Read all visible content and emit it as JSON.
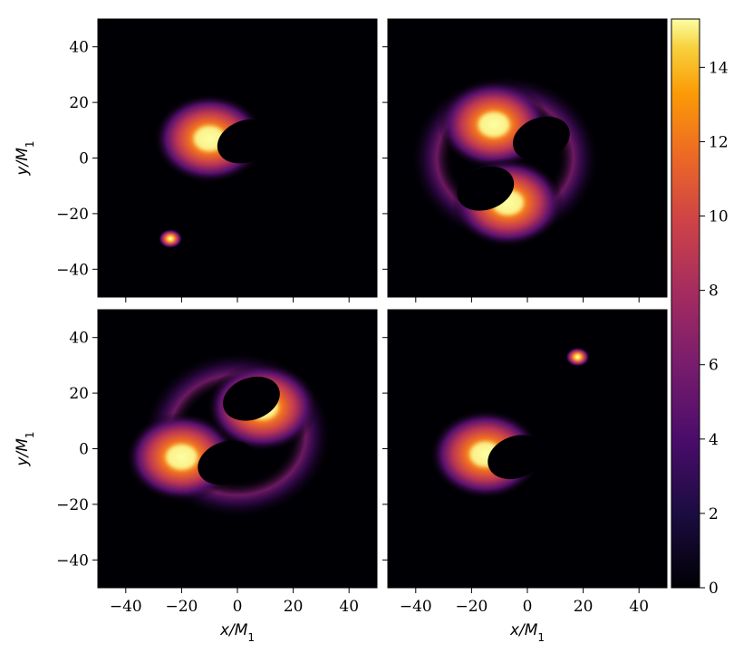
{
  "chart_data": [
    {
      "type": "heatmap",
      "panel": "top-left",
      "xlabel": "",
      "ylabel": "y/M1",
      "xlim": [
        -50,
        50
      ],
      "ylim": [
        -50,
        50
      ],
      "xticks": [
        "−40",
        "−20",
        "0",
        "20",
        "40"
      ],
      "yticks": [
        "40",
        "20",
        "0",
        "−20",
        "−40"
      ],
      "show_xtick_labels": false,
      "show_ytick_labels": true,
      "features": [
        {
          "kind": "blob",
          "x": -10,
          "y": 7,
          "intensity": 13.5
        },
        {
          "kind": "shadow",
          "x": 3,
          "y": 6
        },
        {
          "kind": "blob",
          "x": -24,
          "y": -29,
          "intensity": 14
        }
      ]
    },
    {
      "type": "heatmap",
      "panel": "top-right",
      "xlabel": "",
      "ylabel": "",
      "xlim": [
        -50,
        50
      ],
      "ylim": [
        -50,
        50
      ],
      "xticks": [
        "−40",
        "−20",
        "0",
        "20",
        "40"
      ],
      "yticks": [
        "40",
        "20",
        "0",
        "−20",
        "−40"
      ],
      "show_xtick_labels": false,
      "show_ytick_labels": false,
      "features": [
        {
          "kind": "ring",
          "x": -8,
          "y": 0,
          "intensity": 6
        },
        {
          "kind": "blob",
          "x": -12,
          "y": 12,
          "intensity": 12.5
        },
        {
          "kind": "blob",
          "x": -7,
          "y": -16,
          "intensity": 13
        },
        {
          "kind": "shadow",
          "x": 5,
          "y": 7
        },
        {
          "kind": "shadow",
          "x": -15,
          "y": -11
        }
      ]
    },
    {
      "type": "heatmap",
      "panel": "bottom-left",
      "xlabel": "x/M1",
      "ylabel": "y/M1",
      "xlim": [
        -50,
        50
      ],
      "ylim": [
        -50,
        50
      ],
      "xticks": [
        "−40",
        "−20",
        "0",
        "20",
        "40"
      ],
      "yticks": [
        "40",
        "20",
        "0",
        "−20",
        "−40"
      ],
      "show_xtick_labels": true,
      "show_ytick_labels": true,
      "features": [
        {
          "kind": "ring",
          "x": 0,
          "y": 5,
          "intensity": 5
        },
        {
          "kind": "blob",
          "x": -20,
          "y": -3,
          "intensity": 13.5
        },
        {
          "kind": "blob",
          "x": 9,
          "y": 15,
          "intensity": 13
        },
        {
          "kind": "shadow",
          "x": 5,
          "y": 18
        },
        {
          "kind": "shadow",
          "x": -4,
          "y": -5
        }
      ]
    },
    {
      "type": "heatmap",
      "panel": "bottom-right",
      "xlabel": "x/M1",
      "ylabel": "",
      "xlim": [
        -50,
        50
      ],
      "ylim": [
        -50,
        50
      ],
      "xticks": [
        "−40",
        "−20",
        "0",
        "20",
        "40"
      ],
      "yticks": [
        "40",
        "20",
        "0",
        "−20",
        "−40"
      ],
      "show_xtick_labels": true,
      "show_ytick_labels": false,
      "features": [
        {
          "kind": "blob",
          "x": -15,
          "y": -2,
          "intensity": 13.5
        },
        {
          "kind": "shadow",
          "x": -4,
          "y": -3
        },
        {
          "kind": "blob",
          "x": 18,
          "y": 33,
          "intensity": 14
        }
      ]
    }
  ],
  "colorbar": {
    "colormap": "inferno",
    "range": [
      0,
      15.3
    ],
    "ticks": [
      "0",
      "2",
      "4",
      "6",
      "8",
      "10",
      "12",
      "14"
    ],
    "tick_values": [
      0,
      2,
      4,
      6,
      8,
      10,
      12,
      14
    ]
  },
  "colors": {
    "background": "#000004",
    "frame": "#000000"
  }
}
